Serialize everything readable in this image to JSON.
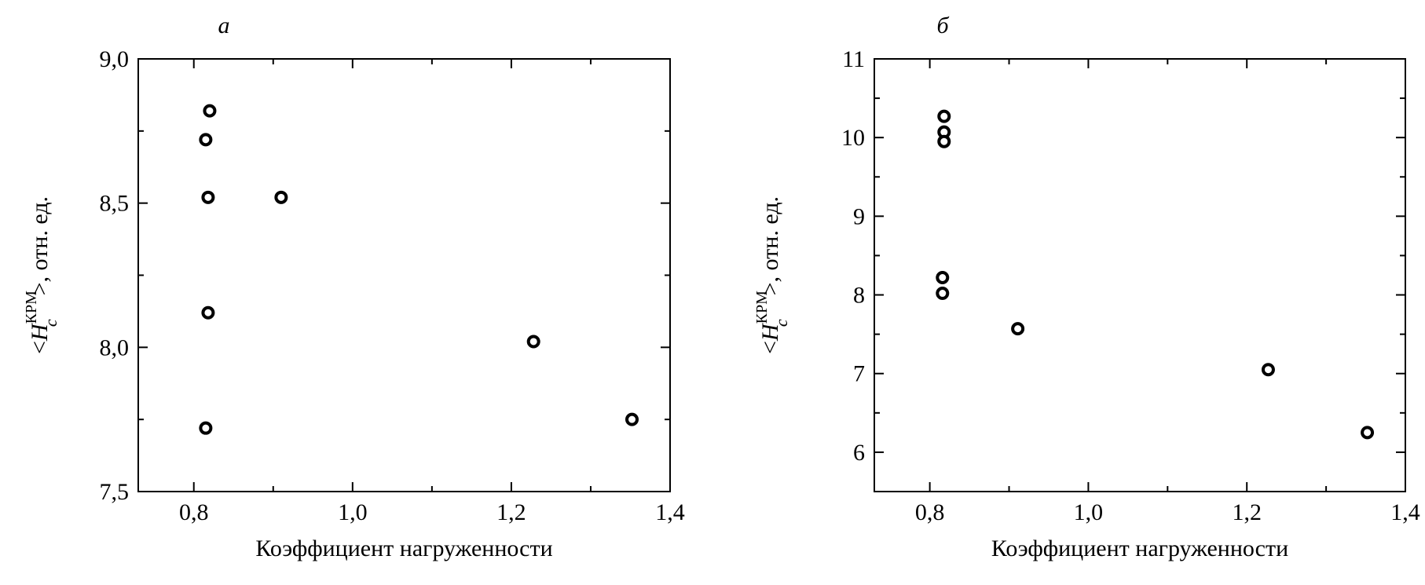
{
  "chart_data": [
    {
      "type": "scatter",
      "panel_label": "а",
      "xlabel": "Коэффициент нагруженности",
      "ylabel": {
        "prefix": "<",
        "symbol": "H",
        "subscript": "c",
        "superscript": "КРМ",
        "suffix": ">, отн. ед."
      },
      "xlim": [
        0.73,
        1.4
      ],
      "ylim": [
        7.5,
        9.0
      ],
      "x_ticks": [
        0.8,
        1.0,
        1.2,
        1.4
      ],
      "x_tick_labels": [
        "0,8",
        "1,0",
        "1,2",
        "1,4"
      ],
      "x_minor_ticks": [
        0.9,
        1.1,
        1.3
      ],
      "y_ticks": [
        7.5,
        8.0,
        8.5,
        9.0
      ],
      "y_tick_labels": [
        "7,5",
        "8,0",
        "8,5",
        "9,0"
      ],
      "y_minor_ticks": [
        7.75,
        8.25,
        8.75
      ],
      "grid": false,
      "legend": "none",
      "points": [
        {
          "x": 0.82,
          "y": 8.82
        },
        {
          "x": 0.815,
          "y": 8.72
        },
        {
          "x": 0.818,
          "y": 8.52
        },
        {
          "x": 0.91,
          "y": 8.52
        },
        {
          "x": 0.818,
          "y": 8.12
        },
        {
          "x": 0.815,
          "y": 7.72
        },
        {
          "x": 1.228,
          "y": 8.02
        },
        {
          "x": 1.352,
          "y": 7.75
        }
      ]
    },
    {
      "type": "scatter",
      "panel_label": "б",
      "xlabel": "Коэффициент нагруженности",
      "ylabel": {
        "prefix": "<",
        "symbol": "H",
        "subscript": "c",
        "superscript": "КРМ",
        "suffix": ">, отн. ед."
      },
      "xlim": [
        0.73,
        1.4
      ],
      "ylim": [
        5.5,
        11.0
      ],
      "x_ticks": [
        0.8,
        1.0,
        1.2,
        1.4
      ],
      "x_tick_labels": [
        "0,8",
        "1,0",
        "1,2",
        "1,4"
      ],
      "x_minor_ticks": [
        0.9,
        1.1,
        1.3
      ],
      "y_ticks": [
        6,
        7,
        8,
        9,
        10,
        11
      ],
      "y_tick_labels": [
        "6",
        "7",
        "8",
        "9",
        "10",
        "11"
      ],
      "y_minor_ticks": [
        5.5,
        6.5,
        7.5,
        8.5,
        9.5,
        10.5
      ],
      "grid": false,
      "legend": "none",
      "points": [
        {
          "x": 0.818,
          "y": 10.27
        },
        {
          "x": 0.818,
          "y": 10.07
        },
        {
          "x": 0.818,
          "y": 9.95
        },
        {
          "x": 0.816,
          "y": 8.22
        },
        {
          "x": 0.816,
          "y": 8.02
        },
        {
          "x": 0.911,
          "y": 7.57
        },
        {
          "x": 1.227,
          "y": 7.05
        },
        {
          "x": 1.352,
          "y": 6.25
        }
      ]
    }
  ]
}
